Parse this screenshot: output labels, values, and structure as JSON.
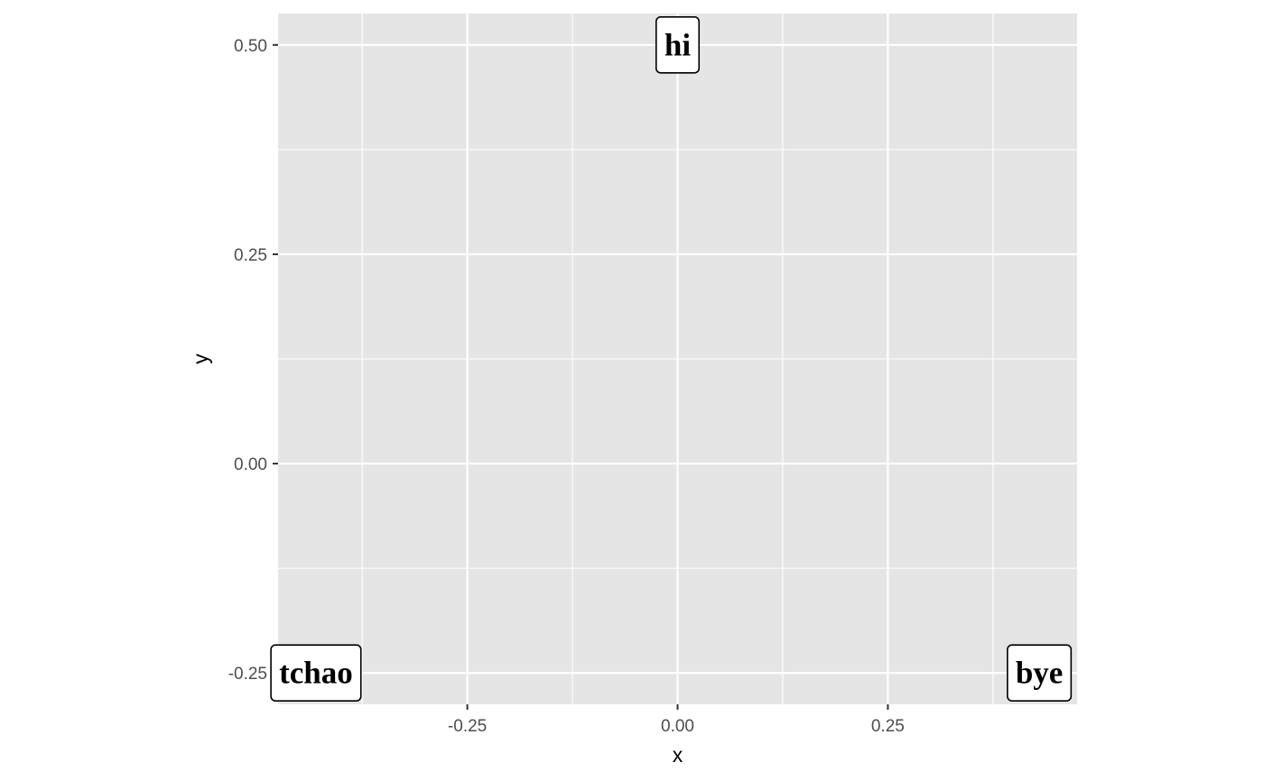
{
  "chart_data": {
    "type": "scatter",
    "title": "",
    "xlabel": "x",
    "ylabel": "y",
    "xlim": [
      -0.475,
      0.475
    ],
    "ylim": [
      -0.2875,
      0.5375
    ],
    "x_ticks": [
      -0.25,
      0.0,
      0.25
    ],
    "x_tick_labels": [
      "-0.25",
      "0.00",
      "0.25"
    ],
    "y_ticks": [
      -0.25,
      0.0,
      0.25,
      0.5
    ],
    "y_tick_labels": [
      "-0.25",
      "0.00",
      "0.25",
      "0.50"
    ],
    "grid": true,
    "panel_background": "#e5e5e5",
    "grid_color": "#ffffff",
    "points": [
      {
        "label": "hi",
        "x": 0.0,
        "y": 0.5
      },
      {
        "label": "tchao",
        "x": -0.43,
        "y": -0.25
      },
      {
        "label": "bye",
        "x": 0.43,
        "y": -0.25
      }
    ]
  }
}
